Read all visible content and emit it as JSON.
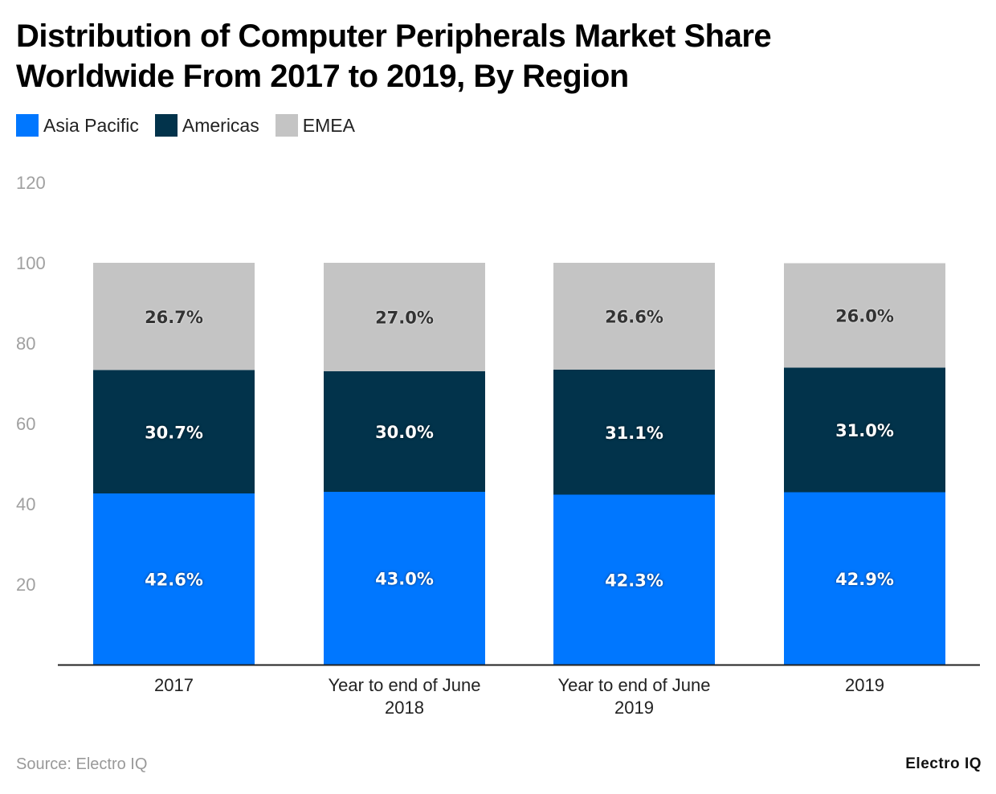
{
  "chart_data": {
    "type": "bar",
    "stacked": true,
    "title": "Distribution of Computer Peripherals Market Share Worldwide From 2017 to 2019, By Region",
    "categories": [
      [
        "2017"
      ],
      [
        "Year to end of June",
        "2018"
      ],
      [
        "Year to end of June",
        "2019"
      ],
      [
        "2019"
      ]
    ],
    "series": [
      {
        "name": "Asia Pacific",
        "color": "#0077FF",
        "values": [
          42.6,
          43.0,
          42.3,
          42.9
        ],
        "labels": [
          "42.6%",
          "43.0%",
          "42.3%",
          "42.9%"
        ]
      },
      {
        "name": "Americas",
        "color": "#02334B",
        "values": [
          30.7,
          30.0,
          31.1,
          31.0
        ],
        "labels": [
          "30.7%",
          "30.0%",
          "31.1%",
          "31.0%"
        ]
      },
      {
        "name": "EMEA",
        "color": "#C4C4C4",
        "values": [
          26.7,
          27.0,
          26.6,
          26.0
        ],
        "labels": [
          "26.7%",
          "27.0%",
          "26.6%",
          "26.0%"
        ]
      }
    ],
    "yticks": [
      "20",
      "40",
      "60",
      "80",
      "100",
      "120"
    ],
    "ylim": [
      0,
      120
    ],
    "grid": false,
    "legend": "top-left",
    "xlabel": "",
    "ylabel": ""
  },
  "source": "Source: Electro IQ",
  "logo": "Electro IQ"
}
